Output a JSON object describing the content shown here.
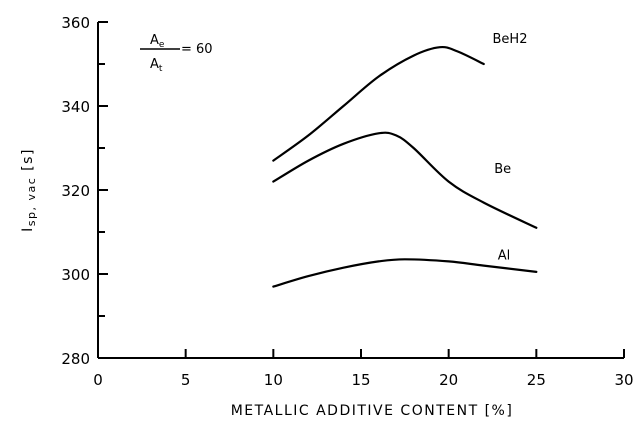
{
  "chart_data": {
    "type": "line",
    "xlabel": "METALLIC ADDITIVE CONTENT [%]",
    "ylabel": "Isp, vac [s]",
    "xlim": [
      0,
      30
    ],
    "ylim": [
      280,
      360
    ],
    "xticks": [
      0,
      5,
      10,
      15,
      20,
      25,
      30
    ],
    "yticks": [
      280,
      300,
      320,
      340,
      360
    ],
    "grid": false,
    "annotation": {
      "numerator": "Ae",
      "denominator": "At",
      "value": "= 60"
    },
    "series": [
      {
        "name": "BeH2",
        "x": [
          10,
          12,
          14,
          16,
          18,
          19.5,
          20.5,
          22
        ],
        "y": [
          327,
          333,
          340,
          347,
          352,
          354,
          353,
          350
        ]
      },
      {
        "name": "Be",
        "x": [
          10,
          12,
          14,
          16,
          17,
          18,
          20,
          22,
          25
        ],
        "y": [
          322,
          327,
          331,
          333.5,
          333,
          330,
          322,
          317,
          311
        ]
      },
      {
        "name": "Al",
        "x": [
          10,
          12,
          14,
          16,
          17.5,
          20,
          22,
          25
        ],
        "y": [
          297,
          299.5,
          301.5,
          303,
          303.5,
          303,
          302,
          300.5
        ]
      }
    ]
  }
}
